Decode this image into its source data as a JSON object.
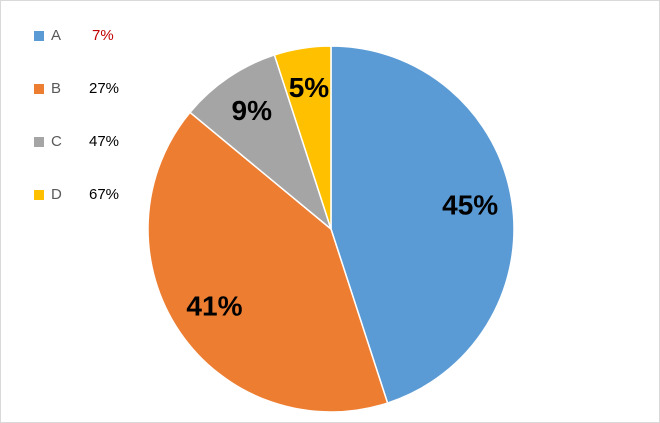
{
  "chart_data": {
    "type": "pie",
    "categories": [
      "A",
      "B",
      "C",
      "D"
    ],
    "values": [
      45,
      41,
      9,
      5
    ],
    "value_labels": [
      "45%",
      "41%",
      "9%",
      "5%"
    ],
    "colors": [
      "#5b9bd5",
      "#ed7d31",
      "#a5a5a5",
      "#ffc000"
    ],
    "legend_notes": [
      "7%",
      "27%",
      "47%",
      "67%"
    ],
    "legend_note_colors": [
      "#c00000",
      "#000000",
      "#000000",
      "#000000"
    ],
    "legend": "top-left"
  }
}
